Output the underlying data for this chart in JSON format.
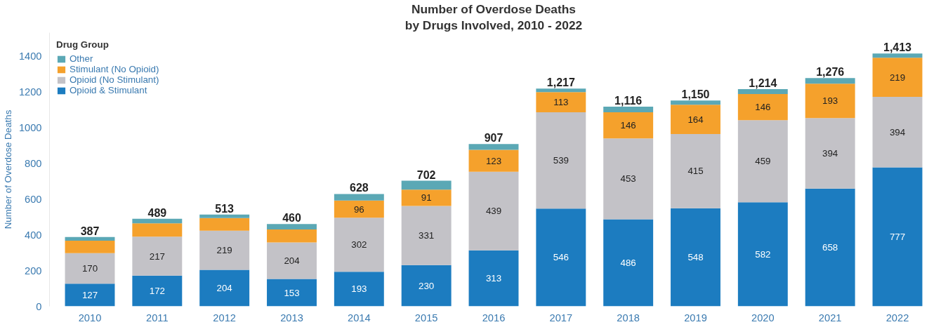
{
  "chart_data": {
    "type": "bar",
    "title": "Number of Overdose Deaths",
    "subtitle": "by Drugs Involved, 2010 - 2022",
    "ylabel": "Number of Overdose Deaths",
    "legend_title": "Drug Group",
    "stacked": true,
    "legend": "top left",
    "grid": false,
    "categories": [
      "2010",
      "2011",
      "2012",
      "2013",
      "2014",
      "2015",
      "2016",
      "2017",
      "2018",
      "2019",
      "2020",
      "2021",
      "2022"
    ],
    "ylim": [
      0,
      1530
    ],
    "yticks": [
      0,
      200,
      400,
      600,
      800,
      1000,
      1200,
      1400
    ],
    "series": [
      {
        "name": "Opioid & Stimulant",
        "color": "#1c7cc0",
        "values": [
          127,
          172,
          204,
          153,
          193,
          230,
          313,
          546,
          486,
          548,
          582,
          658,
          777
        ],
        "value_labels": [
          "127",
          "172",
          "204",
          "153",
          "193",
          "230",
          "313",
          "546",
          "486",
          "548",
          "582",
          "658",
          "777"
        ]
      },
      {
        "name": "Opioid (No Stimulant)",
        "color": "#c3c2c7",
        "values": [
          170,
          217,
          219,
          204,
          302,
          331,
          439,
          539,
          453,
          415,
          459,
          394,
          394
        ],
        "value_labels": [
          "170",
          "217",
          "219",
          "204",
          "302",
          "331",
          "439",
          "539",
          "453",
          "415",
          "459",
          "394",
          "394"
        ]
      },
      {
        "name": "Stimulant (No Opioid)",
        "color": "#f5a12c",
        "values": [
          70,
          75,
          70,
          73,
          96,
          91,
          123,
          113,
          146,
          164,
          146,
          193,
          219
        ],
        "value_labels": [
          null,
          null,
          null,
          null,
          "96",
          "91",
          "123",
          "113",
          "146",
          "164",
          "146",
          "193",
          "219"
        ]
      },
      {
        "name": "Other",
        "color": "#5ba8b5",
        "values": [
          20,
          25,
          20,
          30,
          37,
          50,
          32,
          19,
          31,
          23,
          27,
          31,
          23
        ]
      }
    ],
    "totals": [
      "387",
      "489",
      "513",
      "460",
      "628",
      "702",
      "907",
      "1,217",
      "1,116",
      "1,150",
      "1,214",
      "1,276",
      "1,413"
    ]
  }
}
